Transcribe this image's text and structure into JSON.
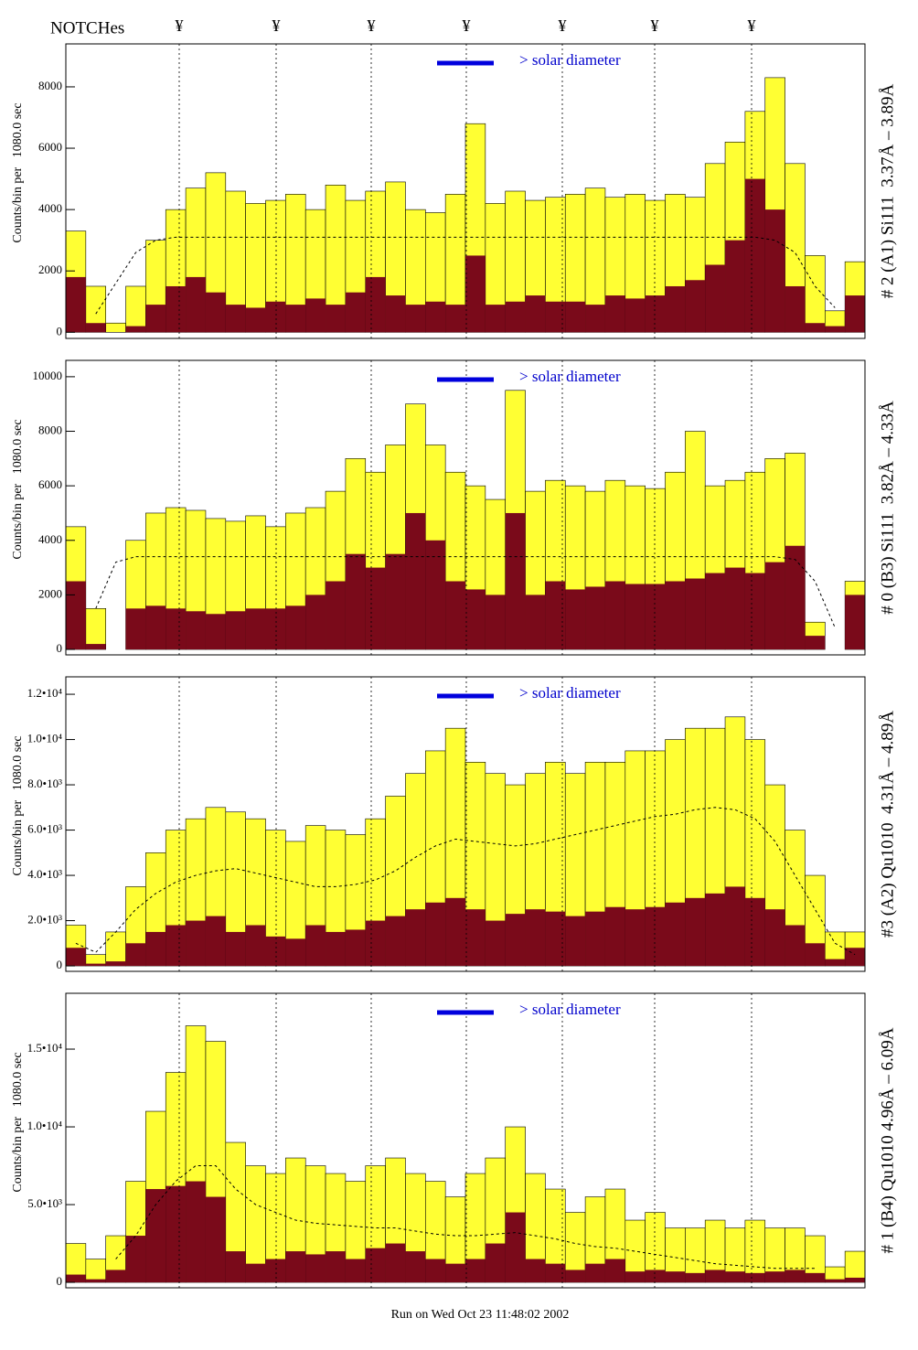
{
  "notches": {
    "label": "NOTCHes",
    "marks": [
      "¥",
      "¥",
      "¥",
      "¥",
      "¥",
      "¥",
      "¥"
    ]
  },
  "footer": "Run on Wed Oct 23 11:48:02 2002",
  "chart_data": [
    {
      "type": "bar",
      "title": "# 2 (A1) Si111  3.37Å – 3.89Å",
      "ylabel": "Counts/bin per   1080.0 sec",
      "annotation": "> solar diameter",
      "categories": [
        null,
        null,
        null,
        null,
        null,
        null,
        null,
        null,
        null,
        null,
        null,
        null,
        null,
        null,
        null,
        null,
        null,
        null,
        null,
        null,
        null,
        null,
        null,
        null,
        null,
        null,
        null,
        null,
        null,
        null,
        null,
        null,
        null,
        null,
        null,
        null,
        null,
        null,
        null,
        null
      ],
      "ylim": [
        -200,
        9400
      ],
      "yticks": [
        0,
        2000,
        4000,
        6000,
        8000
      ],
      "series": [
        {
          "color": "#ffff33",
          "values": [
            3300,
            1500,
            300,
            1500,
            3000,
            4000,
            4700,
            5200,
            4600,
            4200,
            4300,
            4500,
            4000,
            4800,
            4300,
            4600,
            4900,
            4000,
            3900,
            4500,
            6800,
            4200,
            4600,
            4300,
            4400,
            4500,
            4700,
            4400,
            4500,
            4300,
            4500,
            4400,
            5500,
            6200,
            7200,
            8300,
            5500,
            2500,
            700,
            2300
          ]
        },
        {
          "color": "#7a0a1a",
          "values": [
            1800,
            300,
            0,
            200,
            900,
            1500,
            1800,
            1300,
            900,
            800,
            1000,
            900,
            1100,
            900,
            1300,
            1800,
            1200,
            900,
            1000,
            900,
            2500,
            900,
            1000,
            1200,
            1000,
            1000,
            900,
            1200,
            1100,
            1200,
            1500,
            1700,
            2200,
            3000,
            5000,
            4000,
            1500,
            300,
            200,
            1200
          ]
        },
        {
          "color": "#000000",
          "style": "dashed",
          "values": [
            null,
            600,
            1600,
            2600,
            3000,
            3100,
            3100,
            3100,
            3100,
            3100,
            3100,
            3100,
            3100,
            3100,
            3100,
            3100,
            3100,
            3100,
            3100,
            3100,
            3100,
            3100,
            3100,
            3100,
            3100,
            3100,
            3100,
            3100,
            3100,
            3100,
            3100,
            3100,
            3100,
            3100,
            3100,
            3000,
            2600,
            1500,
            800,
            null
          ]
        }
      ]
    },
    {
      "type": "bar",
      "title": "# 0 (B3) Si111  3.82Å – 4.33Å",
      "ylabel": "Counts/bin per   1080.0 sec",
      "annotation": "> solar diameter",
      "categories": [
        null,
        null,
        null,
        null,
        null,
        null,
        null,
        null,
        null,
        null,
        null,
        null,
        null,
        null,
        null,
        null,
        null,
        null,
        null,
        null,
        null,
        null,
        null,
        null,
        null,
        null,
        null,
        null,
        null,
        null,
        null,
        null,
        null,
        null,
        null,
        null,
        null,
        null,
        null,
        null
      ],
      "ylim": [
        -200,
        10600
      ],
      "yticks": [
        0,
        2000,
        4000,
        6000,
        8000,
        10000
      ],
      "series": [
        {
          "color": "#ffff33",
          "values": [
            4500,
            1500,
            0,
            4000,
            5000,
            5200,
            5100,
            4800,
            4700,
            4900,
            4500,
            5000,
            5200,
            5800,
            7000,
            6500,
            7500,
            9000,
            7500,
            6500,
            6000,
            5500,
            9500,
            5800,
            6200,
            6000,
            5800,
            6200,
            6000,
            5900,
            6500,
            8000,
            6000,
            6200,
            6500,
            7000,
            7200,
            1000,
            0,
            2500
          ]
        },
        {
          "color": "#7a0a1a",
          "values": [
            2500,
            200,
            0,
            1500,
            1600,
            1500,
            1400,
            1300,
            1400,
            1500,
            1500,
            1600,
            2000,
            2500,
            3500,
            3000,
            3500,
            5000,
            4000,
            2500,
            2200,
            2000,
            5000,
            2000,
            2500,
            2200,
            2300,
            2500,
            2400,
            2400,
            2500,
            2600,
            2800,
            3000,
            2800,
            3200,
            3800,
            500,
            0,
            2000
          ]
        },
        {
          "color": "#000000",
          "style": "dashed",
          "values": [
            null,
            1500,
            3200,
            3400,
            3400,
            3400,
            3400,
            3400,
            3400,
            3400,
            3400,
            3400,
            3400,
            3400,
            3400,
            3400,
            3400,
            3400,
            3400,
            3400,
            3400,
            3400,
            3400,
            3400,
            3400,
            3400,
            3400,
            3400,
            3400,
            3400,
            3400,
            3400,
            3400,
            3400,
            3400,
            3400,
            3300,
            2500,
            800,
            null
          ]
        }
      ]
    },
    {
      "type": "bar",
      "title": "#3 (A2) Qu1010  4.31Å – 4.89Å",
      "ylabel": "Counts/bin per   1080.0 sec",
      "annotation": "> solar diameter",
      "categories": [
        null,
        null,
        null,
        null,
        null,
        null,
        null,
        null,
        null,
        null,
        null,
        null,
        null,
        null,
        null,
        null,
        null,
        null,
        null,
        null,
        null,
        null,
        null,
        null,
        null,
        null,
        null,
        null,
        null,
        null,
        null,
        null,
        null,
        null,
        null,
        null,
        null,
        null,
        null,
        null
      ],
      "ylim": [
        -240,
        12770
      ],
      "yticks": [
        0,
        {
          "value": 2000,
          "label": "2.0•10³"
        },
        {
          "value": 4000,
          "label": "4.0•10³"
        },
        {
          "value": 6000,
          "label": "6.0•10³"
        },
        {
          "value": 8000,
          "label": "8.0•10³"
        },
        {
          "value": 10000,
          "label": "1.0•10⁴"
        },
        {
          "value": 12000,
          "label": "1.2•10⁴"
        }
      ],
      "series": [
        {
          "color": "#ffff33",
          "values": [
            1800,
            500,
            1500,
            3500,
            5000,
            6000,
            6500,
            7000,
            6800,
            6500,
            6000,
            5500,
            6200,
            6000,
            5800,
            6500,
            7500,
            8500,
            9500,
            10500,
            9000,
            8500,
            8000,
            8500,
            9000,
            8500,
            9000,
            9000,
            9500,
            9500,
            10000,
            10500,
            10500,
            11000,
            10000,
            8000,
            6000,
            4000,
            1500,
            1500
          ]
        },
        {
          "color": "#7a0a1a",
          "values": [
            800,
            100,
            200,
            1000,
            1500,
            1800,
            2000,
            2200,
            1500,
            1800,
            1300,
            1200,
            1800,
            1500,
            1600,
            2000,
            2200,
            2500,
            2800,
            3000,
            2500,
            2000,
            2300,
            2500,
            2400,
            2200,
            2400,
            2600,
            2500,
            2600,
            2800,
            3000,
            3200,
            3500,
            3000,
            2500,
            1800,
            1000,
            300,
            800
          ]
        },
        {
          "color": "#000000",
          "style": "dashed",
          "values": [
            1000,
            600,
            1500,
            2500,
            3200,
            3700,
            4000,
            4200,
            4300,
            4100,
            3900,
            3700,
            3500,
            3500,
            3600,
            3800,
            4200,
            4800,
            5300,
            5600,
            5500,
            5400,
            5300,
            5400,
            5600,
            5800,
            6000,
            6200,
            6400,
            6600,
            6700,
            6900,
            7000,
            6900,
            6500,
            5500,
            4000,
            2500,
            1000,
            500
          ]
        }
      ]
    },
    {
      "type": "bar",
      "title": "# 1 (B4) Qu1010 4.96Å – 6.09Å",
      "ylabel": "Counts/bin per   1080.0 sec",
      "annotation": "> solar diameter",
      "categories": [
        null,
        null,
        null,
        null,
        null,
        null,
        null,
        null,
        null,
        null,
        null,
        null,
        null,
        null,
        null,
        null,
        null,
        null,
        null,
        null,
        null,
        null,
        null,
        null,
        null,
        null,
        null,
        null,
        null,
        null,
        null,
        null,
        null,
        null,
        null,
        null,
        null,
        null,
        null,
        null
      ],
      "ylim": [
        -350,
        18590
      ],
      "yticks": [
        0,
        {
          "value": 5000,
          "label": "5.0•10³"
        },
        {
          "value": 10000,
          "label": "1.0•10⁴"
        },
        {
          "value": 15000,
          "label": "1.5•10⁴"
        }
      ],
      "series": [
        {
          "color": "#ffff33",
          "values": [
            2500,
            1500,
            3000,
            6500,
            11000,
            13500,
            16500,
            15500,
            9000,
            7500,
            7000,
            8000,
            7500,
            7000,
            6500,
            7500,
            8000,
            7000,
            6500,
            5500,
            7000,
            8000,
            10000,
            7000,
            6000,
            4500,
            5500,
            6000,
            4000,
            4500,
            3500,
            3500,
            4000,
            3500,
            4000,
            3500,
            3500,
            3000,
            1000,
            2000
          ]
        },
        {
          "color": "#7a0a1a",
          "values": [
            500,
            200,
            800,
            3000,
            6000,
            6200,
            6500,
            5500,
            2000,
            1200,
            1500,
            2000,
            1800,
            2000,
            1500,
            2200,
            2500,
            2000,
            1500,
            1200,
            1500,
            2500,
            4500,
            1500,
            1200,
            800,
            1200,
            1500,
            700,
            800,
            700,
            600,
            800,
            700,
            600,
            700,
            800,
            600,
            200,
            300
          ]
        },
        {
          "color": "#000000",
          "style": "dashed",
          "values": [
            null,
            null,
            1500,
            3000,
            5000,
            6500,
            7500,
            7500,
            6000,
            5000,
            4500,
            4000,
            3800,
            3700,
            3600,
            3500,
            3500,
            3300,
            3100,
            3000,
            3000,
            3100,
            3200,
            3000,
            2800,
            2500,
            2300,
            2200,
            2000,
            1800,
            1600,
            1400,
            1200,
            1100,
            1000,
            900,
            900,
            900,
            null,
            null
          ]
        }
      ]
    }
  ]
}
